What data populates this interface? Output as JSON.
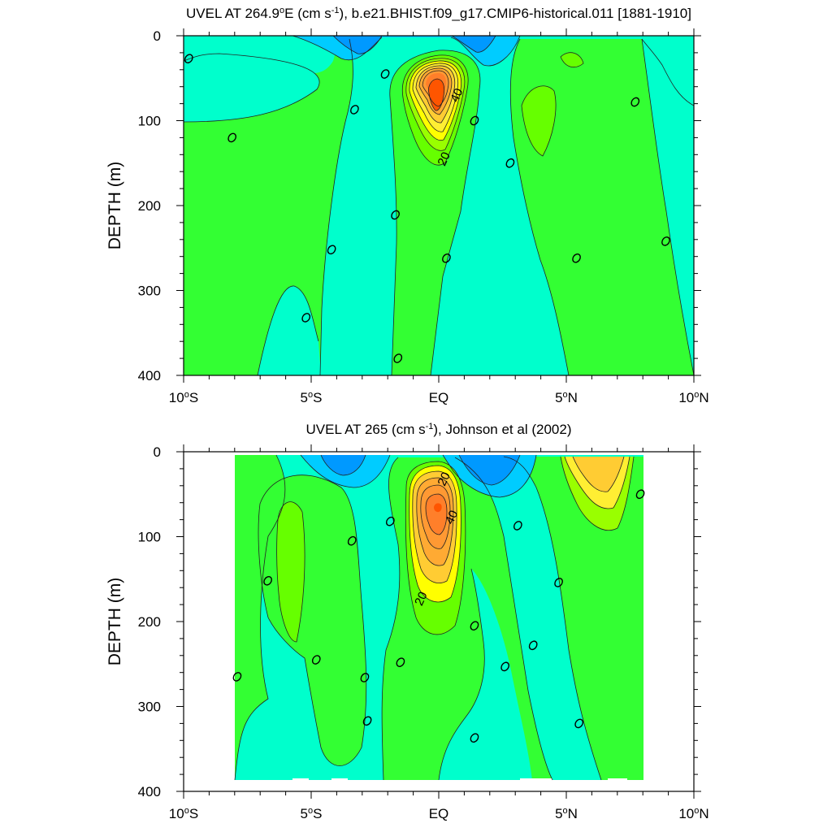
{
  "chart_data": [
    {
      "type": "contour",
      "title_parts": [
        "UVEL AT 264.9",
        "o",
        "E (cm s",
        "-1",
        "), b.e21.BHIST.f09_g17.CMIP6-historical.011 [1881-1910]"
      ],
      "title": "UVEL AT 264.9oE (cm s-1), b.e21.BHIST.f09_g17.CMIP6-historical.011 [1881-1910]",
      "ylabel": "DEPTH (m)",
      "xlim": [
        -10,
        10
      ],
      "ylim": [
        400,
        0
      ],
      "x_ticks": [
        {
          "v": -10,
          "label": "10°S"
        },
        {
          "v": -5,
          "label": "5°S"
        },
        {
          "v": 0,
          "label": "EQ"
        },
        {
          "v": 5,
          "label": "5°N"
        },
        {
          "v": 10,
          "label": "10°N"
        }
      ],
      "y_ticks": [
        {
          "v": 0,
          "label": "0"
        },
        {
          "v": 100,
          "label": "100"
        },
        {
          "v": 200,
          "label": "200"
        },
        {
          "v": 300,
          "label": "300"
        },
        {
          "v": 400,
          "label": "400"
        }
      ],
      "levels": [
        -30,
        -25,
        -20,
        -15,
        -10,
        -5,
        0,
        5,
        10,
        15,
        20,
        25,
        30,
        35,
        40,
        45,
        50
      ],
      "labeled_contours": [
        {
          "text": "0",
          "x": -9.8,
          "depth": 27
        },
        {
          "text": "0",
          "x": -8.1,
          "depth": 120
        },
        {
          "text": "0",
          "x": -3.3,
          "depth": 87
        },
        {
          "text": "0",
          "x": -4.2,
          "depth": 252
        },
        {
          "text": "0",
          "x": -5.2,
          "depth": 332
        },
        {
          "text": "0",
          "x": -2.1,
          "depth": 45
        },
        {
          "text": "0",
          "x": -1.7,
          "depth": 211
        },
        {
          "text": "0",
          "x": -1.6,
          "depth": 380
        },
        {
          "text": "0",
          "x": 1.4,
          "depth": 100
        },
        {
          "text": "0",
          "x": 0.3,
          "depth": 262
        },
        {
          "text": "0",
          "x": 2.8,
          "depth": 150
        },
        {
          "text": "0",
          "x": 5.4,
          "depth": 262
        },
        {
          "text": "0",
          "x": 7.7,
          "depth": 78
        },
        {
          "text": "0",
          "x": 8.9,
          "depth": 242
        },
        {
          "text": "40",
          "x": 0.7,
          "depth": 70
        },
        {
          "text": "20",
          "x": 0.2,
          "depth": 145
        }
      ],
      "features": [
        {
          "kind": "eastward-jet",
          "center_x": 0.0,
          "center_depth": 75,
          "max_value": 50
        },
        {
          "kind": "westward-surface-flow",
          "x_range": [
            -6,
            4
          ],
          "depth_range": [
            0,
            40
          ],
          "min_value": -25
        }
      ]
    },
    {
      "type": "contour",
      "title_parts": [
        "UVEL AT 265 (cm s",
        "-1",
        "), Johnson et al (2002)"
      ],
      "title": "UVEL AT 265 (cm s-1), Johnson et al (2002)",
      "ylabel": "DEPTH (m)",
      "xlim": [
        -10,
        10
      ],
      "ylim": [
        400,
        0
      ],
      "x_ticks": [
        {
          "v": -10,
          "label": "10°S"
        },
        {
          "v": -5,
          "label": "5°S"
        },
        {
          "v": 0,
          "label": "EQ"
        },
        {
          "v": 5,
          "label": "5°N"
        },
        {
          "v": 10,
          "label": "10°N"
        }
      ],
      "y_ticks": [
        {
          "v": 0,
          "label": "0"
        },
        {
          "v": 100,
          "label": "100"
        },
        {
          "v": 200,
          "label": "200"
        },
        {
          "v": 300,
          "label": "300"
        },
        {
          "v": 400,
          "label": "400"
        }
      ],
      "data_x_range": [
        -8,
        8
      ],
      "levels": [
        -30,
        -25,
        -20,
        -15,
        -10,
        -5,
        0,
        5,
        10,
        15,
        20,
        25,
        30,
        35,
        40,
        45,
        50
      ],
      "labeled_contours": [
        {
          "text": "0",
          "x": -7.9,
          "depth": 265
        },
        {
          "text": "0",
          "x": -6.7,
          "depth": 152
        },
        {
          "text": "0",
          "x": -4.8,
          "depth": 245
        },
        {
          "text": "0",
          "x": -3.4,
          "depth": 105
        },
        {
          "text": "0",
          "x": -2.9,
          "depth": 266
        },
        {
          "text": "0",
          "x": -2.8,
          "depth": 317
        },
        {
          "text": "0",
          "x": -1.9,
          "depth": 82
        },
        {
          "text": "0",
          "x": -1.5,
          "depth": 248
        },
        {
          "text": "0",
          "x": 1.4,
          "depth": 205
        },
        {
          "text": "0",
          "x": 1.4,
          "depth": 337
        },
        {
          "text": "0",
          "x": 3.1,
          "depth": 87
        },
        {
          "text": "0",
          "x": 2.6,
          "depth": 253
        },
        {
          "text": "0",
          "x": 3.7,
          "depth": 228
        },
        {
          "text": "0",
          "x": 4.7,
          "depth": 154
        },
        {
          "text": "0",
          "x": 5.5,
          "depth": 320
        },
        {
          "text": "0",
          "x": 7.9,
          "depth": 50
        },
        {
          "text": "20",
          "x": 0.2,
          "depth": 32
        },
        {
          "text": "40",
          "x": 0.5,
          "depth": 77
        },
        {
          "text": "20",
          "x": -0.7,
          "depth": 173
        }
      ],
      "features": [
        {
          "kind": "eastward-jet",
          "center_x": -0.1,
          "center_depth": 65,
          "max_value": 45
        },
        {
          "kind": "eastward-surface-flow",
          "x_range": [
            5,
            8
          ],
          "depth_range": [
            0,
            60
          ],
          "max_value": 25
        },
        {
          "kind": "westward-surface-flow",
          "x_range": [
            -5,
            4
          ],
          "depth_range": [
            0,
            45
          ],
          "min_value": -25
        }
      ]
    }
  ]
}
